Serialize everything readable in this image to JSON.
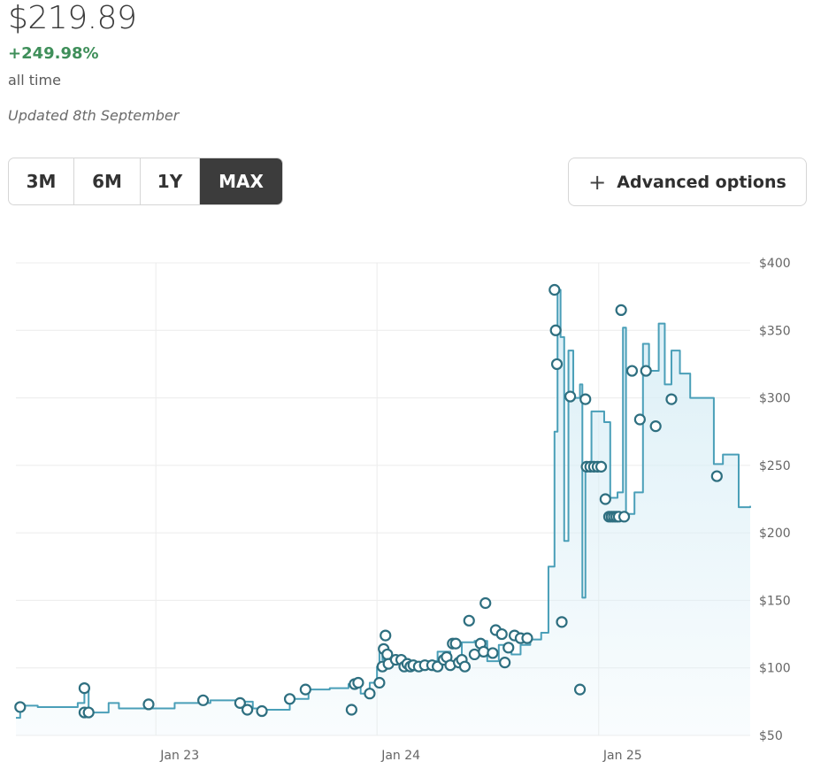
{
  "header": {
    "price": "$219.89",
    "change": "+249.98%",
    "period": "all time",
    "updated": "Updated 8th September"
  },
  "range": {
    "buttons": [
      {
        "label": "3M",
        "active": false
      },
      {
        "label": "6M",
        "active": false
      },
      {
        "label": "1Y",
        "active": false
      },
      {
        "label": "MAX",
        "active": true
      }
    ]
  },
  "advanced": {
    "label": "Advanced options",
    "icon": "plus-icon"
  },
  "chart_data": {
    "type": "line",
    "y_tick_labels": [
      "$400",
      "$350",
      "$300",
      "$250",
      "$200",
      "$150",
      "$100",
      "$50"
    ],
    "x_tick_labels": [
      "Jan 23",
      "Jan 24",
      "Jan 25"
    ],
    "ylim": [
      50,
      400
    ],
    "xlim": [
      "2022-05-15",
      "2025-09-08"
    ],
    "grid": true,
    "line_color": "#4a9fb8",
    "fill_color": "#d9eef6",
    "marker_color": "#2e6f80",
    "series": [
      {
        "values": [
          [
            "2022-05-15",
            63
          ],
          [
            "2022-05-22",
            72
          ],
          [
            "2022-06-20",
            71
          ],
          [
            "2022-07-25",
            71
          ],
          [
            "2022-08-25",
            74
          ],
          [
            "2022-09-05",
            86
          ],
          [
            "2022-09-12",
            67
          ],
          [
            "2022-10-15",
            74
          ],
          [
            "2022-11-01",
            70
          ],
          [
            "2022-12-10",
            70
          ],
          [
            "2023-02-01",
            74
          ],
          [
            "2023-04-01",
            76
          ],
          [
            "2023-05-15",
            75
          ],
          [
            "2023-06-10",
            70
          ],
          [
            "2023-07-01",
            69
          ],
          [
            "2023-08-10",
            77
          ],
          [
            "2023-09-10",
            84
          ],
          [
            "2023-10-15",
            85
          ],
          [
            "2023-11-15",
            88
          ],
          [
            "2023-12-05",
            81
          ],
          [
            "2023-12-20",
            89
          ],
          [
            "2024-01-01",
            101
          ],
          [
            "2024-01-05",
            114
          ],
          [
            "2024-01-10",
            106
          ],
          [
            "2024-02-01",
            104
          ],
          [
            "2024-02-20",
            101
          ],
          [
            "2024-03-10",
            101
          ],
          [
            "2024-03-25",
            105
          ],
          [
            "2024-04-10",
            112
          ],
          [
            "2024-05-01",
            105
          ],
          [
            "2024-05-20",
            119
          ],
          [
            "2024-06-10",
            120
          ],
          [
            "2024-07-01",
            105
          ],
          [
            "2024-07-20",
            117
          ],
          [
            "2024-08-10",
            110
          ],
          [
            "2024-08-25",
            117
          ],
          [
            "2024-09-10",
            121
          ],
          [
            "2024-09-28",
            126
          ],
          [
            "2024-10-10",
            175
          ],
          [
            "2024-10-20",
            275
          ],
          [
            "2024-10-25",
            380
          ],
          [
            "2024-10-30",
            345
          ],
          [
            "2024-11-05",
            194
          ],
          [
            "2024-11-12",
            335
          ],
          [
            "2024-11-20",
            300
          ],
          [
            "2024-12-01",
            310
          ],
          [
            "2024-12-05",
            152
          ],
          [
            "2024-12-10",
            250
          ],
          [
            "2024-12-20",
            290
          ],
          [
            "2025-01-10",
            282
          ],
          [
            "2025-01-20",
            226
          ],
          [
            "2025-02-01",
            230
          ],
          [
            "2025-02-10",
            352
          ],
          [
            "2025-02-15",
            214
          ],
          [
            "2025-03-01",
            230
          ],
          [
            "2025-03-15",
            340
          ],
          [
            "2025-03-25",
            320
          ],
          [
            "2025-04-10",
            355
          ],
          [
            "2025-04-20",
            310
          ],
          [
            "2025-05-01",
            335
          ],
          [
            "2025-05-15",
            318
          ],
          [
            "2025-06-01",
            300
          ],
          [
            "2025-06-20",
            300
          ],
          [
            "2025-07-10",
            251
          ],
          [
            "2025-07-25",
            258
          ],
          [
            "2025-08-10",
            258
          ],
          [
            "2025-08-20",
            219
          ],
          [
            "2025-09-08",
            220
          ]
        ]
      }
    ],
    "markers": [
      [
        "2022-05-22",
        71
      ],
      [
        "2022-09-05",
        85
      ],
      [
        "2022-09-05",
        67
      ],
      [
        "2022-09-12",
        67
      ],
      [
        "2022-12-20",
        73
      ],
      [
        "2023-03-20",
        76
      ],
      [
        "2023-05-20",
        74
      ],
      [
        "2023-06-01",
        69
      ],
      [
        "2023-06-25",
        68
      ],
      [
        "2023-08-10",
        77
      ],
      [
        "2023-09-05",
        84
      ],
      [
        "2023-11-20",
        69
      ],
      [
        "2023-11-25",
        88
      ],
      [
        "2023-12-01",
        89
      ],
      [
        "2023-12-20",
        81
      ],
      [
        "2024-01-05",
        89
      ],
      [
        "2024-01-10",
        101
      ],
      [
        "2024-01-12",
        114
      ],
      [
        "2024-01-15",
        124
      ],
      [
        "2024-01-18",
        110
      ],
      [
        "2024-01-20",
        103
      ],
      [
        "2024-02-01",
        106
      ],
      [
        "2024-02-10",
        106
      ],
      [
        "2024-02-15",
        101
      ],
      [
        "2024-02-20",
        103
      ],
      [
        "2024-02-25",
        101
      ],
      [
        "2024-03-01",
        102
      ],
      [
        "2024-03-10",
        101
      ],
      [
        "2024-03-20",
        102
      ],
      [
        "2024-04-01",
        102
      ],
      [
        "2024-04-10",
        101
      ],
      [
        "2024-04-20",
        106
      ],
      [
        "2024-04-25",
        108
      ],
      [
        "2024-05-01",
        102
      ],
      [
        "2024-05-05",
        118
      ],
      [
        "2024-05-10",
        118
      ],
      [
        "2024-05-15",
        104
      ],
      [
        "2024-05-20",
        106
      ],
      [
        "2024-05-25",
        101
      ],
      [
        "2024-06-01",
        135
      ],
      [
        "2024-06-10",
        110
      ],
      [
        "2024-06-20",
        118
      ],
      [
        "2024-06-25",
        112
      ],
      [
        "2024-06-28",
        148
      ],
      [
        "2024-07-10",
        111
      ],
      [
        "2024-07-15",
        128
      ],
      [
        "2024-07-25",
        125
      ],
      [
        "2024-07-30",
        104
      ],
      [
        "2024-08-05",
        115
      ],
      [
        "2024-08-15",
        124
      ],
      [
        "2024-08-25",
        122
      ],
      [
        "2024-09-05",
        122
      ],
      [
        "2024-10-20",
        380
      ],
      [
        "2024-10-22",
        350
      ],
      [
        "2024-10-24",
        325
      ],
      [
        "2024-11-01",
        134
      ],
      [
        "2024-11-15",
        301
      ],
      [
        "2024-12-01",
        84
      ],
      [
        "2024-12-10",
        299
      ],
      [
        "2024-12-12",
        249
      ],
      [
        "2024-12-18",
        249
      ],
      [
        "2024-12-24",
        249
      ],
      [
        "2024-12-30",
        249
      ],
      [
        "2025-01-05",
        249
      ],
      [
        "2025-01-12",
        225
      ],
      [
        "2025-01-18",
        212
      ],
      [
        "2025-01-22",
        212
      ],
      [
        "2025-01-26",
        212
      ],
      [
        "2025-01-30",
        212
      ],
      [
        "2025-02-03",
        212
      ],
      [
        "2025-02-07",
        365
      ],
      [
        "2025-02-12",
        212
      ],
      [
        "2025-02-25",
        320
      ],
      [
        "2025-03-10",
        284
      ],
      [
        "2025-03-20",
        320
      ],
      [
        "2025-04-05",
        279
      ],
      [
        "2025-05-01",
        299
      ],
      [
        "2025-07-15",
        242
      ]
    ]
  }
}
